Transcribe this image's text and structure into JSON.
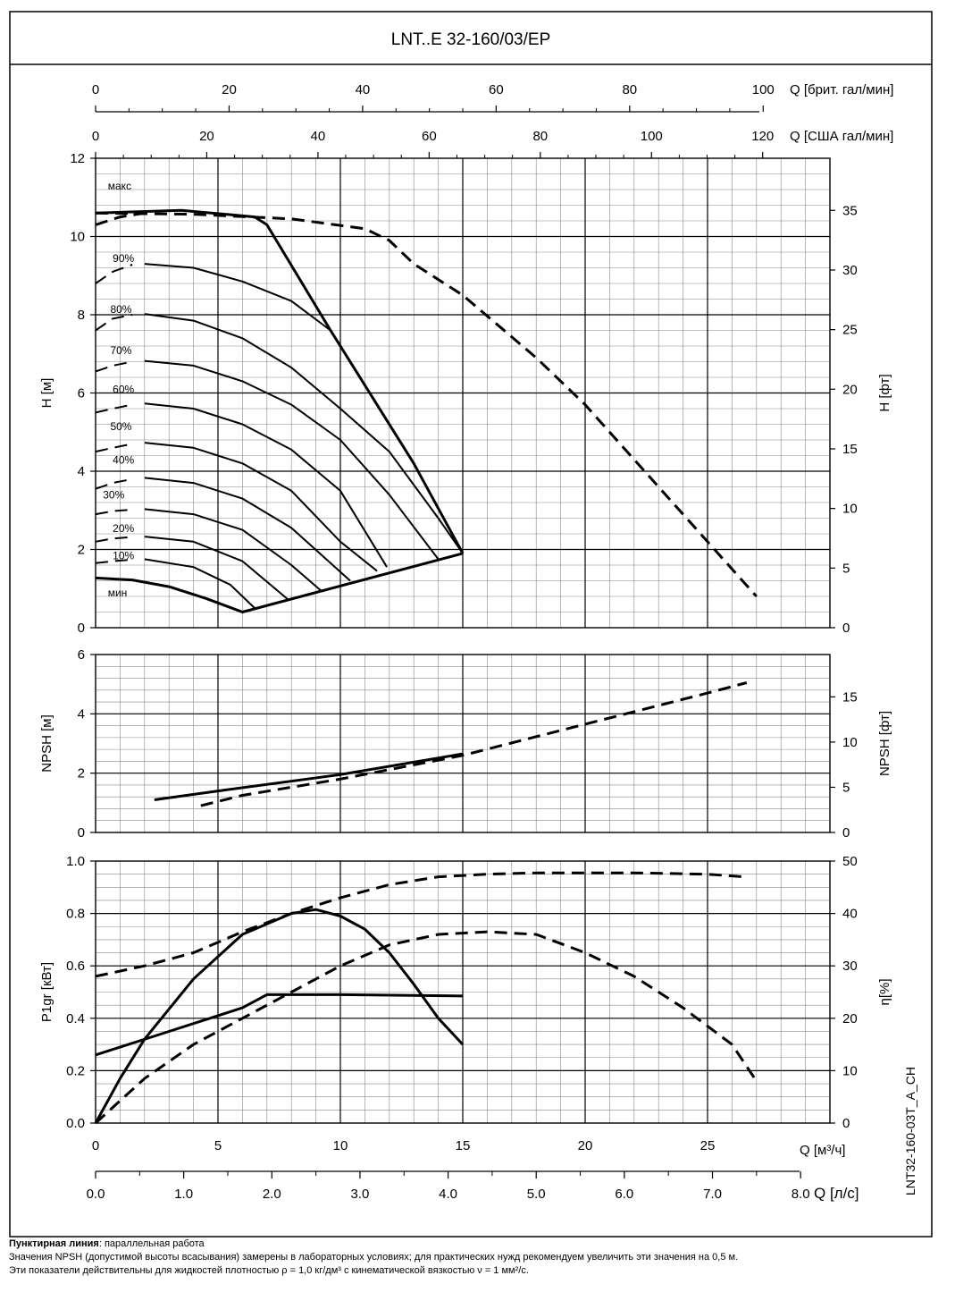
{
  "title": "LNT..E 32-160/03/EP",
  "code": "LNT32-160-03T_A_CH",
  "notes": {
    "dashed_bold": "Пунктирная линия",
    "dashed_rest": ": параллельная работа",
    "line2": "Значения NPSH (допустимой высоты всасывания) замерены в лабораторных условиях; для практических нужд рекомендуем увеличить эти значения на 0,5 м.",
    "line3": "Эти показатели действительны для жидкостей плотностью ρ = 1,0 кг/дм³ с кинематической вязкостью ν = 1 мм²/с."
  },
  "chart_data": [
    {
      "type": "line",
      "name": "head",
      "xlim": [
        0,
        30
      ],
      "ylim": [
        0,
        12
      ],
      "ylabel": "H [м]",
      "y2label": "H [фт]",
      "yticks": [
        0,
        2,
        4,
        6,
        8,
        10,
        12
      ],
      "y2ticks": [
        0,
        5,
        10,
        15,
        20,
        25,
        30,
        35
      ],
      "top_axes": [
        {
          "label": "Q [брит. гал/мин]",
          "ticks": [
            0,
            20,
            40,
            60,
            80,
            100
          ],
          "max": 110.0
        },
        {
          "label": "Q [США гал/мин]",
          "ticks": [
            0,
            20,
            40,
            60,
            80,
            100,
            120
          ],
          "max": 132.1
        }
      ],
      "curve_labels": [
        {
          "text": "макс",
          "x": 0.5,
          "y": 11.2
        },
        {
          "text": "90%",
          "x": 0.7,
          "y": 9.35
        },
        {
          "text": "80%",
          "x": 0.6,
          "y": 8.05
        },
        {
          "text": "70%",
          "x": 0.6,
          "y": 7.0
        },
        {
          "text": "60%",
          "x": 0.7,
          "y": 6.0
        },
        {
          "text": "50%",
          "x": 0.6,
          "y": 5.05
        },
        {
          "text": "40%",
          "x": 0.7,
          "y": 4.2
        },
        {
          "text": "30%",
          "x": 0.3,
          "y": 3.3
        },
        {
          "text": "20%",
          "x": 0.7,
          "y": 2.45
        },
        {
          "text": "10%",
          "x": 0.7,
          "y": 1.75
        },
        {
          "text": "мин",
          "x": 0.5,
          "y": 0.8
        }
      ],
      "series": [
        {
          "style": "solid",
          "width": 3,
          "points": [
            [
              0,
              10.6
            ],
            [
              3.5,
              10.67
            ],
            [
              6.5,
              10.5
            ],
            [
              7,
              10.3
            ],
            [
              9.6,
              7.6
            ],
            [
              13,
              4.2
            ],
            [
              15,
              1.9
            ]
          ]
        },
        {
          "style": "solid",
          "width": 3,
          "points": [
            [
              0,
              1.27
            ],
            [
              1.5,
              1.22
            ],
            [
              3,
              1.05
            ],
            [
              4.5,
              0.75
            ],
            [
              6,
              0.4
            ],
            [
              15,
              1.9
            ]
          ]
        },
        {
          "style": "solid",
          "width": 2,
          "points": [
            [
              2,
              9.3
            ],
            [
              4,
              9.2
            ],
            [
              6,
              8.85
            ],
            [
              8,
              8.35
            ],
            [
              9.6,
              7.6
            ]
          ]
        },
        {
          "style": "solid",
          "width": 2,
          "points": [
            [
              2,
              8.02
            ],
            [
              4,
              7.85
            ],
            [
              6,
              7.4
            ],
            [
              8,
              6.65
            ],
            [
              10,
              5.6
            ],
            [
              12,
              4.5
            ],
            [
              14,
              2.8
            ],
            [
              15,
              1.9
            ]
          ]
        },
        {
          "style": "solid",
          "width": 2,
          "points": [
            [
              2,
              6.82
            ],
            [
              4,
              6.7
            ],
            [
              6,
              6.3
            ],
            [
              8,
              5.7
            ],
            [
              10,
              4.8
            ],
            [
              12,
              3.4
            ],
            [
              14,
              1.75
            ]
          ]
        },
        {
          "style": "solid",
          "width": 2,
          "points": [
            [
              2,
              5.73
            ],
            [
              4,
              5.6
            ],
            [
              6,
              5.2
            ],
            [
              8,
              4.55
            ],
            [
              10,
              3.5
            ],
            [
              11.9,
              1.55
            ]
          ]
        },
        {
          "style": "solid",
          "width": 2,
          "points": [
            [
              2,
              4.73
            ],
            [
              4,
              4.6
            ],
            [
              6,
              4.2
            ],
            [
              8,
              3.5
            ],
            [
              10,
              2.2
            ],
            [
              11.5,
              1.45
            ]
          ]
        },
        {
          "style": "solid",
          "width": 2,
          "points": [
            [
              2,
              3.83
            ],
            [
              4,
              3.7
            ],
            [
              6,
              3.3
            ],
            [
              8,
              2.55
            ],
            [
              10.4,
              1.2
            ]
          ]
        },
        {
          "style": "solid",
          "width": 2,
          "points": [
            [
              2,
              3.03
            ],
            [
              4,
              2.9
            ],
            [
              6,
              2.5
            ],
            [
              8,
              1.6
            ],
            [
              9.2,
              0.95
            ]
          ]
        },
        {
          "style": "solid",
          "width": 2,
          "points": [
            [
              2,
              2.33
            ],
            [
              4,
              2.2
            ],
            [
              6,
              1.7
            ],
            [
              7.9,
              0.7
            ]
          ]
        },
        {
          "style": "solid",
          "width": 2,
          "points": [
            [
              2,
              1.75
            ],
            [
              4,
              1.55
            ],
            [
              5.5,
              1.1
            ],
            [
              6.5,
              0.5
            ]
          ]
        },
        {
          "style": "dashed",
          "width": 3,
          "points": [
            [
              0,
              10.6
            ],
            [
              4,
              10.57
            ],
            [
              8,
              10.45
            ],
            [
              11,
              10.2
            ],
            [
              12,
              9.9
            ],
            [
              13,
              9.3
            ],
            [
              15,
              8.5
            ],
            [
              18,
              6.9
            ],
            [
              20,
              5.7
            ],
            [
              22,
              4.3
            ],
            [
              25,
              2.2
            ],
            [
              27,
              0.8
            ]
          ]
        },
        {
          "style": "dashed",
          "width": 3,
          "points": [
            [
              0,
              10.3
            ],
            [
              1,
              10.5
            ],
            [
              2,
              10.6
            ]
          ]
        },
        {
          "style": "dashed",
          "width": 2,
          "points": [
            [
              0,
              8.8
            ],
            [
              0.7,
              9.1
            ],
            [
              1.5,
              9.28
            ]
          ]
        },
        {
          "style": "dashed",
          "width": 2,
          "points": [
            [
              0,
              7.6
            ],
            [
              0.7,
              7.9
            ],
            [
              1.5,
              8.0
            ]
          ]
        },
        {
          "style": "dashed",
          "width": 2,
          "points": [
            [
              0,
              6.55
            ],
            [
              0.7,
              6.7
            ],
            [
              1.5,
              6.8
            ]
          ]
        },
        {
          "style": "dashed",
          "width": 2,
          "points": [
            [
              0,
              5.5
            ],
            [
              0.7,
              5.6
            ],
            [
              1.5,
              5.7
            ]
          ]
        },
        {
          "style": "dashed",
          "width": 2,
          "points": [
            [
              0,
              4.5
            ],
            [
              0.7,
              4.6
            ],
            [
              1.5,
              4.7
            ]
          ]
        },
        {
          "style": "dashed",
          "width": 2,
          "points": [
            [
              0,
              3.55
            ],
            [
              0.7,
              3.7
            ],
            [
              1.5,
              3.8
            ]
          ]
        },
        {
          "style": "dashed",
          "width": 2,
          "points": [
            [
              0,
              2.9
            ],
            [
              0.7,
              2.98
            ],
            [
              1.5,
              3.02
            ]
          ]
        },
        {
          "style": "dashed",
          "width": 2,
          "points": [
            [
              0,
              2.2
            ],
            [
              0.7,
              2.28
            ],
            [
              1.5,
              2.32
            ]
          ]
        },
        {
          "style": "dashed",
          "width": 2,
          "points": [
            [
              0,
              1.65
            ],
            [
              0.7,
              1.7
            ],
            [
              1.5,
              1.74
            ]
          ]
        }
      ]
    },
    {
      "type": "line",
      "name": "npsh",
      "xlim": [
        0,
        30
      ],
      "ylim": [
        0,
        6
      ],
      "ylabel": "NPSH [м]",
      "y2label": "NPSH [фт]",
      "yticks": [
        0,
        2,
        4,
        6
      ],
      "y2ticks": [
        0,
        5,
        10,
        15
      ],
      "series": [
        {
          "style": "solid",
          "width": 3,
          "points": [
            [
              2.4,
              1.1
            ],
            [
              5,
              1.4
            ],
            [
              10,
              1.95
            ],
            [
              15,
              2.65
            ]
          ]
        },
        {
          "style": "dashed",
          "width": 3,
          "points": [
            [
              4.3,
              0.9
            ],
            [
              6,
              1.25
            ],
            [
              10,
              1.8
            ],
            [
              15,
              2.6
            ],
            [
              20,
              3.65
            ],
            [
              25,
              4.7
            ],
            [
              26.6,
              5.05
            ]
          ]
        }
      ]
    },
    {
      "type": "line",
      "name": "power-efficiency",
      "xlim": [
        0,
        30
      ],
      "ylim": [
        0,
        1
      ],
      "ylabel": "P1gr [кВт]",
      "y2label": "η[%]",
      "yticks": [
        0.0,
        0.2,
        0.4,
        0.6,
        0.8,
        1.0
      ],
      "y2ticks": [
        0,
        10,
        20,
        30,
        40,
        50
      ],
      "xlabel": "Q [м³/ч]",
      "xticks": [
        0,
        5,
        10,
        15,
        20,
        25
      ],
      "bottom_axis": {
        "label": "Q [л/с]",
        "ticks": [
          "0.0",
          "1.0",
          "2.0",
          "3.0",
          "4.0",
          "5.0",
          "6.0",
          "7.0",
          "8.0"
        ],
        "max": 8.333
      },
      "series": [
        {
          "style": "solid",
          "width": 3,
          "points": [
            [
              0,
              0.26
            ],
            [
              3,
              0.35
            ],
            [
              6,
              0.44
            ],
            [
              7,
              0.49
            ],
            [
              10,
              0.49
            ],
            [
              15,
              0.485
            ]
          ]
        },
        {
          "style": "solid",
          "width": 3,
          "points": [
            [
              0,
              0.0
            ],
            [
              1,
              0.17
            ],
            [
              2,
              0.32
            ],
            [
              4,
              0.55
            ],
            [
              6,
              0.72
            ],
            [
              8,
              0.8
            ],
            [
              9,
              0.815
            ],
            [
              10,
              0.79
            ],
            [
              11,
              0.74
            ],
            [
              12,
              0.65
            ],
            [
              13,
              0.53
            ],
            [
              14,
              0.4
            ],
            [
              15,
              0.3
            ]
          ]
        },
        {
          "style": "dashed",
          "width": 3,
          "points": [
            [
              0,
              0.0
            ],
            [
              2,
              0.17
            ],
            [
              4,
              0.3
            ],
            [
              6,
              0.4
            ],
            [
              8,
              0.5
            ],
            [
              10,
              0.6
            ],
            [
              12,
              0.68
            ],
            [
              14,
              0.72
            ],
            [
              16,
              0.73
            ],
            [
              18,
              0.72
            ],
            [
              20,
              0.65
            ],
            [
              22,
              0.56
            ],
            [
              24,
              0.44
            ],
            [
              26,
              0.3
            ],
            [
              27,
              0.16
            ]
          ]
        },
        {
          "style": "dashed",
          "width": 3,
          "points": [
            [
              0,
              0.56
            ],
            [
              2,
              0.6
            ],
            [
              4,
              0.65
            ],
            [
              6,
              0.73
            ],
            [
              8,
              0.8
            ],
            [
              10,
              0.86
            ],
            [
              12,
              0.91
            ],
            [
              14,
              0.94
            ],
            [
              16,
              0.95
            ],
            [
              18,
              0.955
            ],
            [
              22,
              0.955
            ],
            [
              25,
              0.95
            ],
            [
              26.5,
              0.94
            ]
          ]
        }
      ]
    }
  ]
}
